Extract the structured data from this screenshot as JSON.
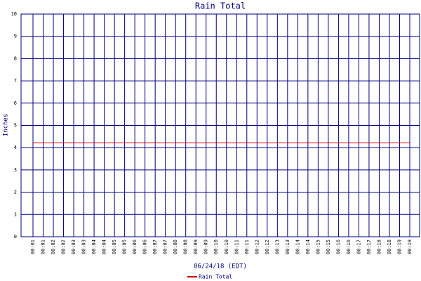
{
  "chart_data": {
    "type": "line",
    "title": "Rain Total",
    "x_label": "06/24/18 (EDT)",
    "y_label": "Inches",
    "categories": [
      "00:01",
      "00:01",
      "00:02",
      "00:02",
      "00:03",
      "00:03",
      "00:04",
      "00:04",
      "00:05",
      "00:05",
      "00:06",
      "00:06",
      "00:07",
      "00:07",
      "00:08",
      "00:08",
      "00:09",
      "00:09",
      "00:10",
      "00:10",
      "00:11",
      "00:11",
      "00:12",
      "00:12",
      "00:13",
      "00:13",
      "00:14",
      "00:14",
      "00:15",
      "00:15",
      "00:16",
      "00:16",
      "00:17",
      "00:17",
      "00:18",
      "00:18",
      "00:19",
      "00:19"
    ],
    "series": [
      {
        "name": "Rain Total",
        "color": "#cc0000",
        "values": [
          4.22,
          4.22,
          4.22,
          4.22,
          4.22,
          4.22,
          4.22,
          4.22,
          4.22,
          4.22,
          4.22,
          4.22,
          4.22,
          4.22,
          4.22,
          4.22,
          4.22,
          4.22,
          4.22,
          4.22,
          4.22,
          4.22,
          4.22,
          4.22,
          4.22,
          4.22,
          4.22,
          4.22,
          4.22,
          4.22,
          4.22,
          4.22,
          4.22,
          4.22,
          4.22,
          4.22,
          4.22,
          4.22
        ]
      }
    ],
    "ylim": [
      0,
      10
    ],
    "yticks": [
      0,
      1,
      2,
      3,
      4,
      5,
      6,
      7,
      8,
      9,
      10
    ],
    "grid": true,
    "grid_color": "#000080"
  }
}
